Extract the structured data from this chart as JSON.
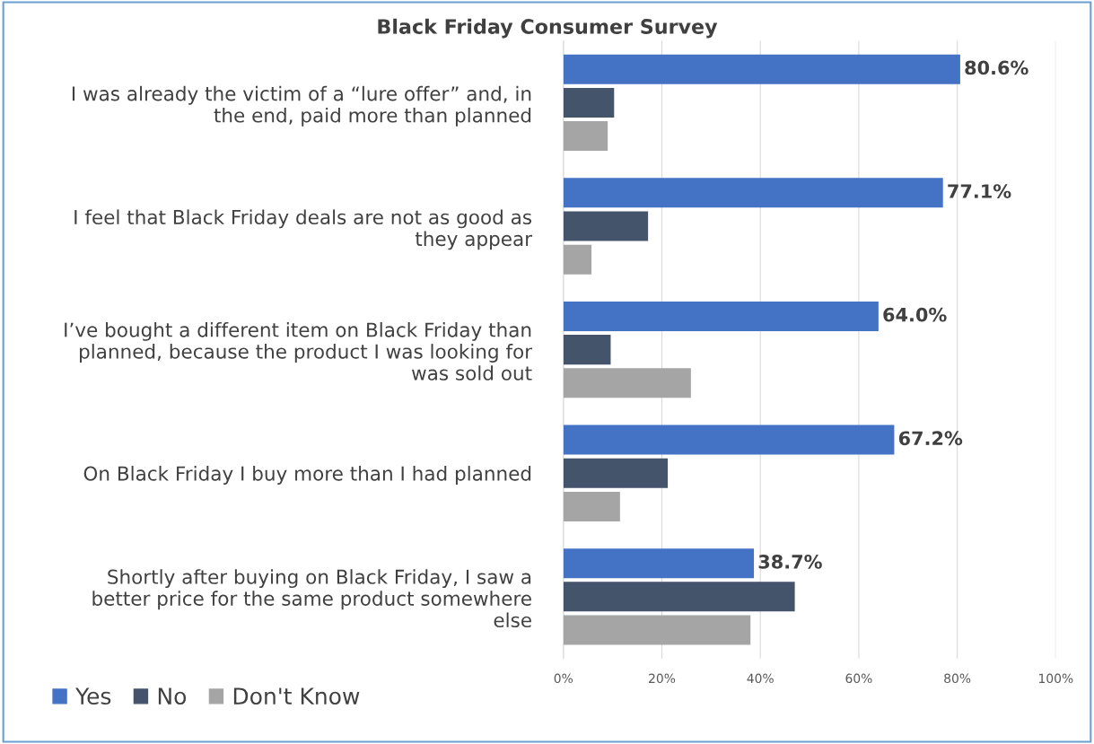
{
  "chart_data": {
    "type": "bar",
    "orientation": "horizontal",
    "title": "Black Friday Consumer Survey",
    "categories": [
      "I was already the victim of a “lure offer” and, in\nthe end, paid more than planned",
      "I feel that Black Friday deals are not as good as\nthey appear",
      "I’ve bought a different item on Black Friday than\nplanned, because the product I was looking for\nwas sold out",
      "On Black Friday I buy more than I had planned",
      "Shortly after buying on Black Friday, I saw a\nbetter price for the same product somewhere\nelse"
    ],
    "series": [
      {
        "name": "Yes",
        "color": "#4472c4",
        "values": [
          80.6,
          77.1,
          64.0,
          67.2,
          38.7
        ],
        "value_labels": [
          "80.6%",
          "77.1%",
          "64.0%",
          "67.2%",
          "38.7%"
        ]
      },
      {
        "name": "No",
        "color": "#44546a",
        "values": [
          10.3,
          17.2,
          9.6,
          21.2,
          47.0
        ]
      },
      {
        "name": "Don't Know",
        "color": "#a5a5a5",
        "values": [
          9.0,
          5.7,
          25.9,
          11.5,
          38.0
        ]
      }
    ],
    "xlim": [
      0,
      100
    ],
    "xticks": [
      {
        "value": 0,
        "label": "0%"
      },
      {
        "value": 20,
        "label": "20%"
      },
      {
        "value": 40,
        "label": "40%"
      },
      {
        "value": 60,
        "label": "60%"
      },
      {
        "value": 80,
        "label": "80%"
      },
      {
        "value": 100,
        "label": "100%"
      }
    ],
    "grid": "x",
    "legend": "bottom left"
  }
}
